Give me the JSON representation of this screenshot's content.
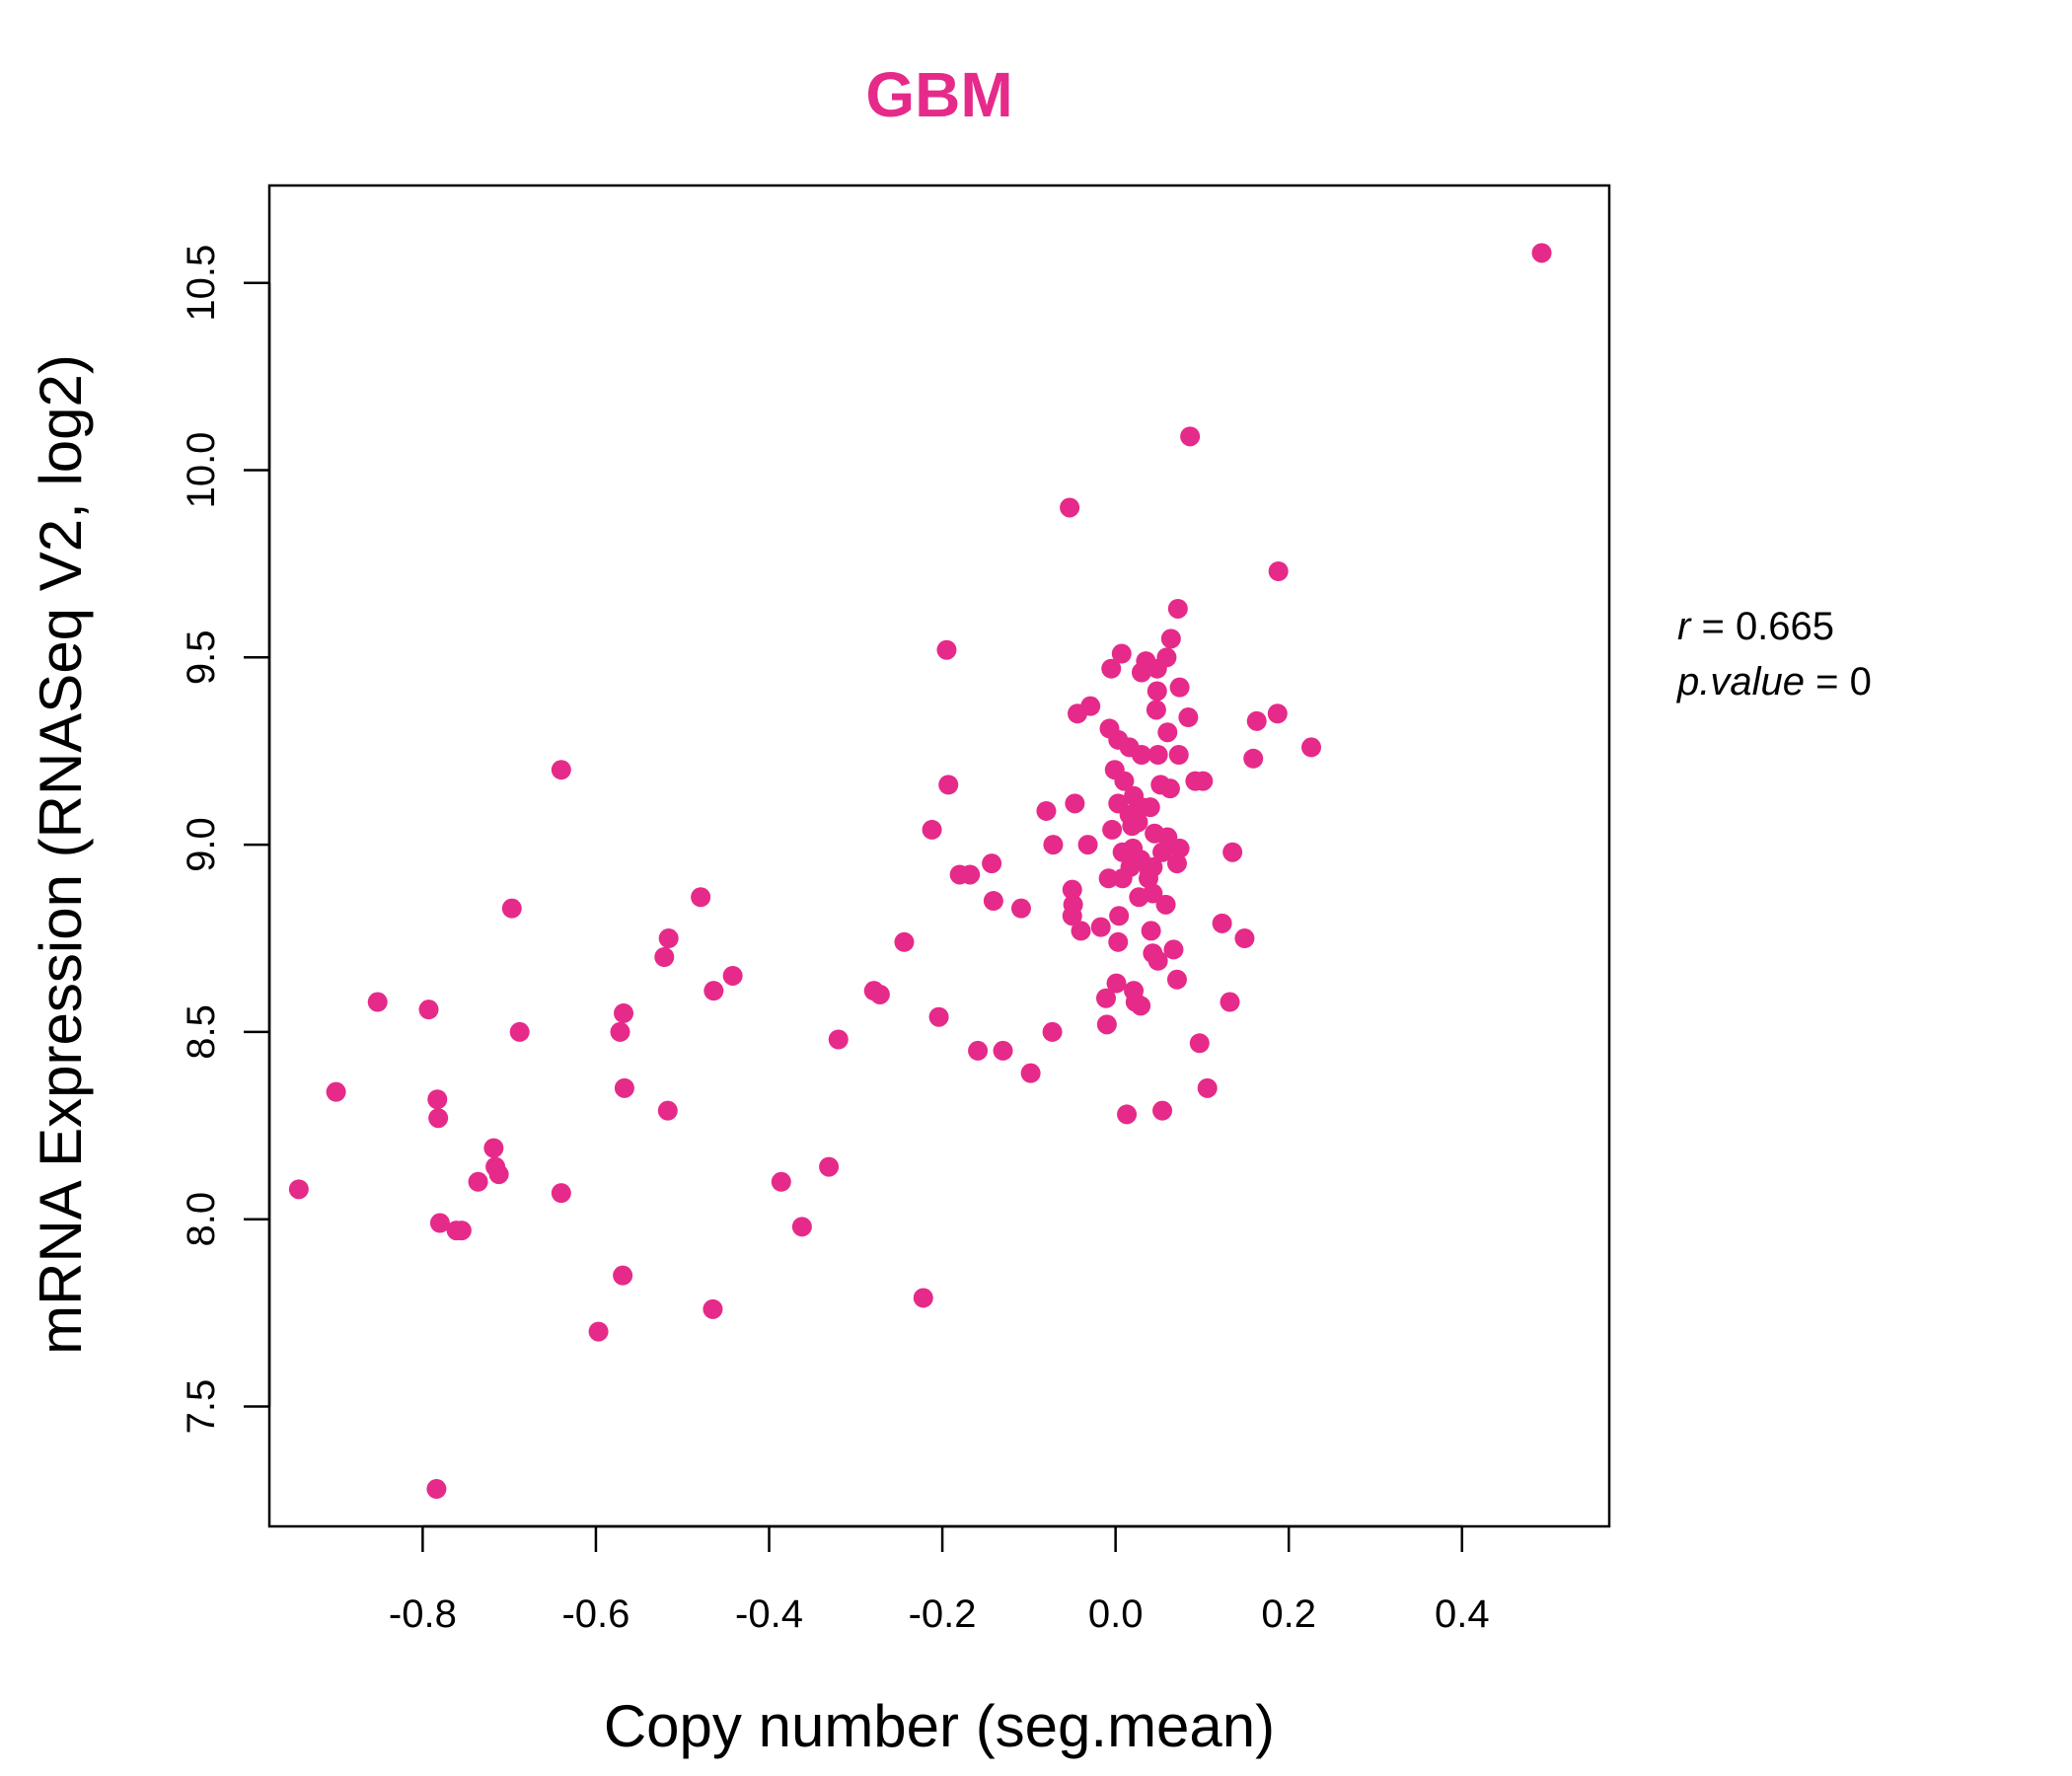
{
  "chart_data": {
    "type": "scatter",
    "title": "GBM",
    "xlabel": "Copy number (seg.mean)",
    "ylabel": "mRNA Expression (RNASeq V2, log2)",
    "xlim": [
      -0.977,
      0.57
    ],
    "ylim": [
      7.18,
      10.76
    ],
    "x_ticks": [
      -0.8,
      -0.6,
      -0.4,
      -0.2,
      0.0,
      0.2,
      0.4
    ],
    "x_tick_labels": [
      "-0.8",
      "-0.6",
      "-0.4",
      "-0.2",
      "0.0",
      "0.2",
      "0.4"
    ],
    "y_ticks": [
      7.5,
      8.0,
      8.5,
      9.0,
      9.5,
      10.0,
      10.5
    ],
    "y_tick_labels": [
      "7.5",
      "8.0",
      "8.5",
      "9.0",
      "9.5",
      "10.0",
      "10.5"
    ],
    "grid": false,
    "colors": {
      "accent": "#e62a8a",
      "axis": "#000000"
    },
    "stats": {
      "r_label": "r",
      "r_value": "0.665",
      "p_label": "p.value",
      "p_value": "0"
    },
    "points": [
      {
        "x": 0.492,
        "y": 10.58
      },
      {
        "x": 0.086,
        "y": 10.09
      },
      {
        "x": -0.053,
        "y": 9.9
      },
      {
        "x": 0.188,
        "y": 9.73
      },
      {
        "x": 0.072,
        "y": 9.63
      },
      {
        "x": 0.064,
        "y": 9.55
      },
      {
        "x": -0.195,
        "y": 9.52
      },
      {
        "x": 0.007,
        "y": 9.51
      },
      {
        "x": 0.059,
        "y": 9.5
      },
      {
        "x": 0.035,
        "y": 9.49
      },
      {
        "x": -0.005,
        "y": 9.47
      },
      {
        "x": 0.048,
        "y": 9.47
      },
      {
        "x": 0.03,
        "y": 9.46
      },
      {
        "x": 0.074,
        "y": 9.42
      },
      {
        "x": 0.048,
        "y": 9.41
      },
      {
        "x": 0.047,
        "y": 9.36
      },
      {
        "x": 0.187,
        "y": 9.35
      },
      {
        "x": -0.044,
        "y": 9.35
      },
      {
        "x": -0.029,
        "y": 9.37
      },
      {
        "x": 0.084,
        "y": 9.34
      },
      {
        "x": 0.163,
        "y": 9.33
      },
      {
        "x": -0.007,
        "y": 9.31
      },
      {
        "x": 0.06,
        "y": 9.3
      },
      {
        "x": 0.003,
        "y": 9.28
      },
      {
        "x": 0.226,
        "y": 9.26
      },
      {
        "x": 0.016,
        "y": 9.26
      },
      {
        "x": 0.03,
        "y": 9.24
      },
      {
        "x": 0.049,
        "y": 9.24
      },
      {
        "x": 0.073,
        "y": 9.24
      },
      {
        "x": 0.159,
        "y": 9.23
      },
      {
        "x": -0.64,
        "y": 9.2
      },
      {
        "x": -0.001,
        "y": 9.2
      },
      {
        "x": 0.01,
        "y": 9.17
      },
      {
        "x": 0.092,
        "y": 9.17
      },
      {
        "x": 0.101,
        "y": 9.17
      },
      {
        "x": -0.193,
        "y": 9.16
      },
      {
        "x": 0.052,
        "y": 9.16
      },
      {
        "x": 0.063,
        "y": 9.15
      },
      {
        "x": 0.021,
        "y": 9.13
      },
      {
        "x": -0.047,
        "y": 9.11
      },
      {
        "x": 0.003,
        "y": 9.11
      },
      {
        "x": 0.03,
        "y": 9.1
      },
      {
        "x": 0.04,
        "y": 9.1
      },
      {
        "x": -0.08,
        "y": 9.09
      },
      {
        "x": 0.016,
        "y": 9.08
      },
      {
        "x": 0.026,
        "y": 9.06
      },
      {
        "x": -0.212,
        "y": 9.04
      },
      {
        "x": -0.004,
        "y": 9.04
      },
      {
        "x": 0.019,
        "y": 9.05
      },
      {
        "x": 0.045,
        "y": 9.03
      },
      {
        "x": 0.06,
        "y": 9.02
      },
      {
        "x": -0.072,
        "y": 9.0
      },
      {
        "x": -0.032,
        "y": 9.0
      },
      {
        "x": 0.02,
        "y": 8.99
      },
      {
        "x": 0.074,
        "y": 8.99
      },
      {
        "x": 0.008,
        "y": 8.98
      },
      {
        "x": 0.054,
        "y": 8.98
      },
      {
        "x": 0.135,
        "y": 8.98
      },
      {
        "x": 0.029,
        "y": 8.96
      },
      {
        "x": -0.143,
        "y": 8.95
      },
      {
        "x": 0.071,
        "y": 8.95
      },
      {
        "x": 0.017,
        "y": 8.94
      },
      {
        "x": 0.043,
        "y": 8.94
      },
      {
        "x": 0.039,
        "y": 8.93
      },
      {
        "x": -0.18,
        "y": 8.92
      },
      {
        "x": -0.168,
        "y": 8.92
      },
      {
        "x": -0.008,
        "y": 8.91
      },
      {
        "x": 0.008,
        "y": 8.91
      },
      {
        "x": 0.038,
        "y": 8.91
      },
      {
        "x": -0.05,
        "y": 8.88
      },
      {
        "x": 0.043,
        "y": 8.87
      },
      {
        "x": 0.027,
        "y": 8.86
      },
      {
        "x": -0.479,
        "y": 8.86
      },
      {
        "x": -0.141,
        "y": 8.85
      },
      {
        "x": -0.049,
        "y": 8.84
      },
      {
        "x": 0.058,
        "y": 8.84
      },
      {
        "x": -0.109,
        "y": 8.83
      },
      {
        "x": -0.697,
        "y": 8.83
      },
      {
        "x": -0.05,
        "y": 8.81
      },
      {
        "x": 0.004,
        "y": 8.81
      },
      {
        "x": 0.123,
        "y": 8.79
      },
      {
        "x": -0.017,
        "y": 8.78
      },
      {
        "x": -0.04,
        "y": 8.77
      },
      {
        "x": 0.041,
        "y": 8.77
      },
      {
        "x": -0.516,
        "y": 8.75
      },
      {
        "x": 0.149,
        "y": 8.75
      },
      {
        "x": 0.003,
        "y": 8.74
      },
      {
        "x": -0.244,
        "y": 8.74
      },
      {
        "x": 0.067,
        "y": 8.72
      },
      {
        "x": 0.043,
        "y": 8.71
      },
      {
        "x": -0.521,
        "y": 8.7
      },
      {
        "x": 0.049,
        "y": 8.69
      },
      {
        "x": -0.442,
        "y": 8.65
      },
      {
        "x": 0.071,
        "y": 8.64
      },
      {
        "x": 0.001,
        "y": 8.63
      },
      {
        "x": -0.464,
        "y": 8.61
      },
      {
        "x": -0.279,
        "y": 8.61
      },
      {
        "x": -0.272,
        "y": 8.6
      },
      {
        "x": 0.021,
        "y": 8.61
      },
      {
        "x": 0.132,
        "y": 8.58
      },
      {
        "x": -0.852,
        "y": 8.58
      },
      {
        "x": 0.023,
        "y": 8.58
      },
      {
        "x": -0.011,
        "y": 8.59
      },
      {
        "x": 0.029,
        "y": 8.57
      },
      {
        "x": -0.793,
        "y": 8.56
      },
      {
        "x": -0.568,
        "y": 8.55
      },
      {
        "x": -0.204,
        "y": 8.54
      },
      {
        "x": -0.01,
        "y": 8.52
      },
      {
        "x": -0.073,
        "y": 8.5
      },
      {
        "x": -0.572,
        "y": 8.5
      },
      {
        "x": -0.688,
        "y": 8.5
      },
      {
        "x": -0.32,
        "y": 8.48
      },
      {
        "x": 0.097,
        "y": 8.47
      },
      {
        "x": -0.159,
        "y": 8.45
      },
      {
        "x": -0.13,
        "y": 8.45
      },
      {
        "x": -0.098,
        "y": 8.39
      },
      {
        "x": -0.567,
        "y": 8.35
      },
      {
        "x": 0.106,
        "y": 8.35
      },
      {
        "x": -0.9,
        "y": 8.34
      },
      {
        "x": -0.783,
        "y": 8.32
      },
      {
        "x": -0.517,
        "y": 8.29
      },
      {
        "x": 0.054,
        "y": 8.29
      },
      {
        "x": 0.013,
        "y": 8.28
      },
      {
        "x": -0.782,
        "y": 8.27
      },
      {
        "x": -0.718,
        "y": 8.19
      },
      {
        "x": -0.716,
        "y": 8.14
      },
      {
        "x": -0.331,
        "y": 8.14
      },
      {
        "x": -0.712,
        "y": 8.12
      },
      {
        "x": -0.386,
        "y": 8.1
      },
      {
        "x": -0.736,
        "y": 8.1
      },
      {
        "x": -0.943,
        "y": 8.08
      },
      {
        "x": -0.64,
        "y": 8.07
      },
      {
        "x": -0.78,
        "y": 7.99
      },
      {
        "x": -0.362,
        "y": 7.98
      },
      {
        "x": -0.761,
        "y": 7.97
      },
      {
        "x": -0.755,
        "y": 7.97
      },
      {
        "x": -0.569,
        "y": 7.85
      },
      {
        "x": -0.222,
        "y": 7.79
      },
      {
        "x": -0.465,
        "y": 7.76
      },
      {
        "x": -0.597,
        "y": 7.7
      },
      {
        "x": -0.784,
        "y": 7.28
      }
    ]
  }
}
